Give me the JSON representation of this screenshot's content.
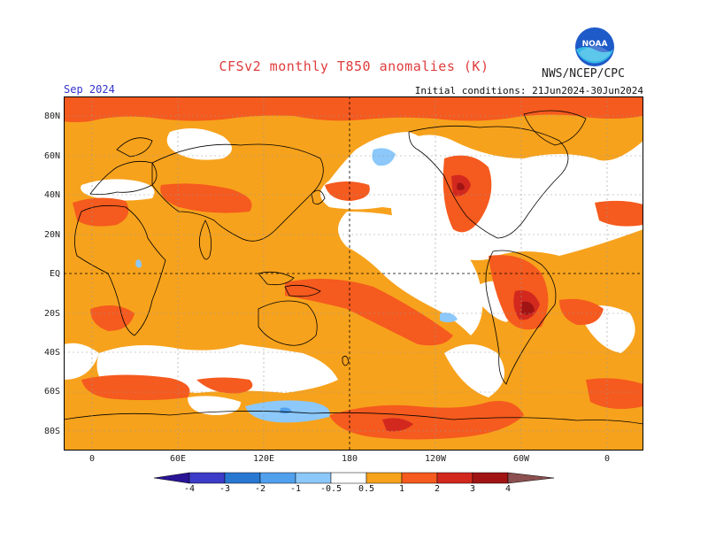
{
  "title": "CFSv2 monthly T850 anomalies (K)",
  "agency": "NWS/NCEP/CPC",
  "forecast_month": "Sep 2024",
  "initial_conditions": "Initial conditions: 21Jun2024-30Jun2024",
  "logo_text": "NOAA",
  "colors": {
    "c_neg4": "#2a1496",
    "c_neg3": "#3c3cc8",
    "c_neg2": "#2878d2",
    "c_neg1": "#50a0ee",
    "c_neg05": "#8cc8fa",
    "c_zero": "#ffffff",
    "c_05": "#f7a21c",
    "c_1": "#f55a1e",
    "c_2": "#d2281e",
    "c_3": "#a01414",
    "c_4": "#c8a09a",
    "c_5": "#8c5050"
  },
  "lat_labels": [
    "80N",
    "60N",
    "40N",
    "20N",
    "EQ",
    "20S",
    "40S",
    "60S",
    "80S"
  ],
  "lon_labels": [
    "0",
    "60E",
    "120E",
    "180",
    "120W",
    "60W",
    "0"
  ],
  "colorbar_labels": [
    "-4",
    "-3",
    "-2",
    "-1",
    "-0.5",
    "0.5",
    "1",
    "2",
    "3",
    "4"
  ]
}
